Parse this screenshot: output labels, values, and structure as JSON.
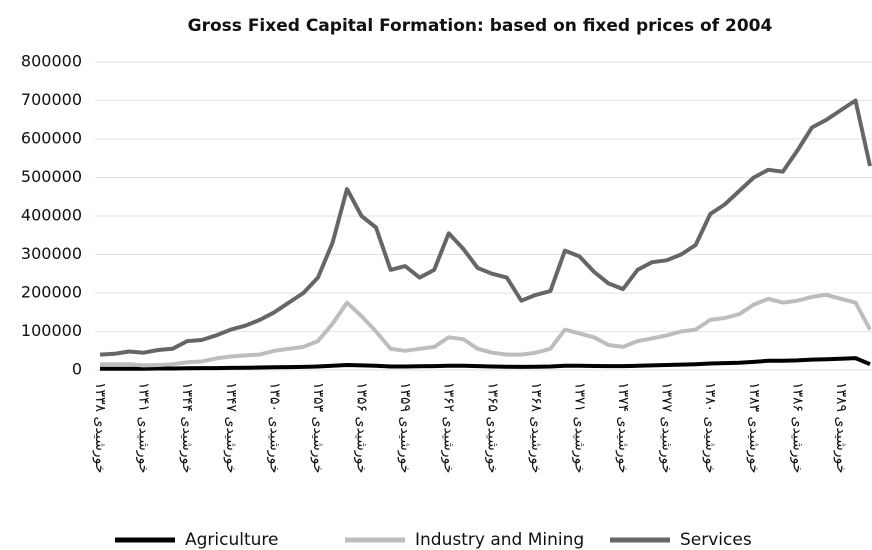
{
  "chart_data": {
    "type": "line",
    "title": "Gross Fixed Capital Formation: based on fixed prices of 2004",
    "categories": [
      "۱۳۳۸ خورشیدی",
      null,
      null,
      "۱۳۴۱ خورشیدی",
      null,
      null,
      "۱۳۴۴ خورشیدی",
      null,
      null,
      "۱۳۴۷ خورشیدی",
      null,
      null,
      "۱۳۵۰ خورشیدی",
      null,
      null,
      "۱۳۵۳ خورشیدی",
      null,
      null,
      "۱۳۵۶ خورشیدی",
      null,
      null,
      "۱۳۵۹ خورشیدی",
      null,
      null,
      "۱۳۶۲ خورشیدی",
      null,
      null,
      "۱۳۶۵ خورشیدی",
      null,
      null,
      "۱۳۶۸ خورشیدی",
      null,
      null,
      "۱۳۷۱ خورشیدی",
      null,
      null,
      "۱۳۷۴ خورشیدی",
      null,
      null,
      "۱۳۷۷ خورشیدی",
      null,
      null,
      "۱۳۸۰ خورشیدی",
      null,
      null,
      "۱۳۸۳ خورشیدی",
      null,
      null,
      "۱۳۸۶ خورشیدی",
      null,
      null,
      "۱۳۸۹ خورشیدی",
      null,
      null
    ],
    "series": [
      {
        "name": "Agriculture",
        "color": "#000000",
        "values": [
          3000,
          3000,
          3500,
          3500,
          4000,
          4000,
          4500,
          5000,
          5000,
          5500,
          6000,
          6500,
          7000,
          7500,
          8000,
          9000,
          11000,
          13000,
          12000,
          11000,
          9000,
          9000,
          9500,
          10000,
          11000,
          11000,
          10000,
          9000,
          8500,
          8000,
          8500,
          9000,
          11000,
          11000,
          10500,
          10000,
          10000,
          11000,
          12000,
          13000,
          14000,
          15000,
          17000,
          18000,
          19000,
          21000,
          24000,
          24000,
          25000,
          27000,
          28000,
          29000,
          31000,
          15000
        ]
      },
      {
        "name": "Industry and Mining",
        "color": "#bdbdbd",
        "values": [
          15000,
          15000,
          15000,
          12000,
          13000,
          15000,
          20000,
          22000,
          30000,
          35000,
          38000,
          40000,
          50000,
          55000,
          60000,
          75000,
          120000,
          175000,
          140000,
          100000,
          55000,
          50000,
          55000,
          60000,
          85000,
          80000,
          55000,
          45000,
          40000,
          40000,
          45000,
          55000,
          105000,
          95000,
          85000,
          65000,
          60000,
          75000,
          82000,
          90000,
          100000,
          105000,
          130000,
          135000,
          145000,
          170000,
          185000,
          175000,
          180000,
          190000,
          195000,
          185000,
          175000,
          105000
        ]
      },
      {
        "name": "Services",
        "color": "#666666",
        "values": [
          40000,
          42000,
          48000,
          45000,
          52000,
          55000,
          75000,
          78000,
          90000,
          105000,
          115000,
          130000,
          150000,
          175000,
          200000,
          240000,
          330000,
          470000,
          400000,
          370000,
          260000,
          270000,
          240000,
          260000,
          355000,
          315000,
          265000,
          250000,
          240000,
          180000,
          195000,
          205000,
          310000,
          295000,
          255000,
          225000,
          210000,
          260000,
          280000,
          285000,
          300000,
          325000,
          405000,
          430000,
          465000,
          500000,
          520000,
          515000,
          570000,
          630000,
          650000,
          675000,
          700000,
          530000
        ]
      }
    ],
    "ylim": [
      0,
      800000
    ],
    "yticks": [
      0,
      100000,
      200000,
      300000,
      400000,
      500000,
      600000,
      700000,
      800000
    ],
    "grid": true,
    "legend": "bottom"
  }
}
